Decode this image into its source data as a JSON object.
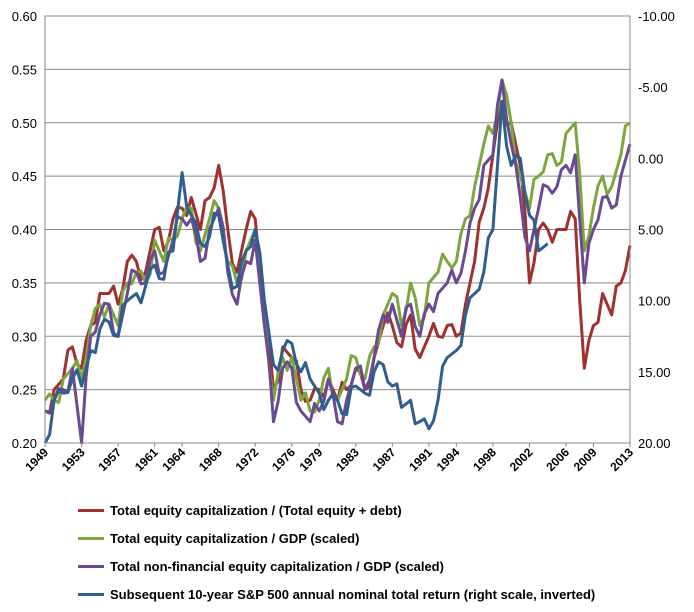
{
  "chart_data": {
    "type": "line",
    "title": "",
    "xlabel": "",
    "ylabel": "",
    "y_left": {
      "range": [
        0.2,
        0.6
      ],
      "ticks": [
        "0.20",
        "0.25",
        "0.30",
        "0.35",
        "0.40",
        "0.45",
        "0.50",
        "0.55",
        "0.60"
      ]
    },
    "y_right": {
      "range": [
        20.0,
        -10.0
      ],
      "inverted": true,
      "ticks": [
        "20.00",
        "15.00",
        "10.00",
        "5.00",
        "0.00",
        "-5.00",
        "-10.00"
      ]
    },
    "x_range": [
      1949,
      2013
    ],
    "x_ticks": [
      "1949",
      "1953",
      "1957",
      "1961",
      "1964",
      "1968",
      "1972",
      "1976",
      "1979",
      "1983",
      "1987",
      "1991",
      "1994",
      "1998",
      "2002",
      "2006",
      "2009",
      "2013"
    ],
    "grid": "horizontal",
    "legend_position": "bottom",
    "series": [
      {
        "name": "Total equity capitalization / (Total equity + debt)",
        "color": "#a0312e",
        "axis": "left",
        "x": [
          1949,
          1950,
          1951,
          1952,
          1953,
          1954,
          1955,
          1956,
          1957,
          1958,
          1959,
          1960,
          1961,
          1962,
          1963,
          1964,
          1965,
          1966,
          1967,
          1968,
          1969,
          1970,
          1971,
          1972,
          1973,
          1974,
          1975,
          1976,
          1977,
          1978,
          1979,
          1980,
          1981,
          1982,
          1983,
          1984,
          1985,
          1986,
          1987,
          1988,
          1989,
          1990,
          1991,
          1992,
          1993,
          1994,
          1995,
          1996,
          1997,
          1998,
          1999,
          2000,
          2001,
          2002,
          2003,
          2004,
          2005,
          2006,
          2007,
          2008,
          2009,
          2010,
          2011,
          2012,
          2013
        ],
        "y": [
          0.23,
          0.25,
          0.26,
          0.29,
          0.27,
          0.31,
          0.34,
          0.34,
          0.33,
          0.37,
          0.37,
          0.36,
          0.4,
          0.38,
          0.41,
          0.42,
          0.43,
          0.4,
          0.43,
          0.46,
          0.4,
          0.36,
          0.4,
          0.41,
          0.33,
          0.25,
          0.29,
          0.28,
          0.25,
          0.24,
          0.25,
          0.26,
          0.24,
          0.25,
          0.27,
          0.25,
          0.28,
          0.31,
          0.31,
          0.29,
          0.32,
          0.28,
          0.3,
          0.3,
          0.31,
          0.3,
          0.33,
          0.37,
          0.42,
          0.47,
          0.52,
          0.5,
          0.46,
          0.35,
          0.4,
          0.4,
          0.4,
          0.4,
          0.41,
          0.27,
          0.31,
          0.34,
          0.32,
          0.35,
          0.385
        ]
      },
      {
        "name": "Total equity capitalization / GDP (scaled)",
        "color": "#7ea63f",
        "axis": "left",
        "x": [
          1949,
          1950,
          1951,
          1952,
          1953,
          1954,
          1955,
          1956,
          1957,
          1958,
          1959,
          1960,
          1961,
          1962,
          1963,
          1964,
          1965,
          1966,
          1967,
          1968,
          1969,
          1970,
          1971,
          1972,
          1973,
          1974,
          1975,
          1976,
          1977,
          1978,
          1979,
          1980,
          1981,
          1982,
          1983,
          1984,
          1985,
          1986,
          1987,
          1988,
          1989,
          1990,
          1991,
          1992,
          1993,
          1994,
          1995,
          1996,
          1997,
          1998,
          1999,
          2000,
          2001,
          2002,
          2003,
          2004,
          2005,
          2006,
          2007,
          2008,
          2009,
          2010,
          2011,
          2012,
          2013
        ],
        "y": [
          0.24,
          0.24,
          0.26,
          0.27,
          0.26,
          0.31,
          0.33,
          0.33,
          0.31,
          0.35,
          0.36,
          0.35,
          0.39,
          0.37,
          0.39,
          0.41,
          0.42,
          0.38,
          0.41,
          0.42,
          0.37,
          0.35,
          0.38,
          0.4,
          0.32,
          0.24,
          0.28,
          0.28,
          0.24,
          0.23,
          0.24,
          0.27,
          0.24,
          0.26,
          0.28,
          0.26,
          0.29,
          0.32,
          0.34,
          0.31,
          0.35,
          0.31,
          0.35,
          0.36,
          0.37,
          0.37,
          0.41,
          0.44,
          0.48,
          0.49,
          0.54,
          0.5,
          0.45,
          0.42,
          0.45,
          0.47,
          0.46,
          0.49,
          0.5,
          0.38,
          0.42,
          0.45,
          0.44,
          0.47,
          0.5
        ]
      },
      {
        "name": "Total non-financial equity capitalization / GDP (scaled)",
        "color": "#6a4a92",
        "axis": "left",
        "x": [
          1949,
          1950,
          1951,
          1952,
          1953,
          1954,
          1955,
          1956,
          1957,
          1958,
          1959,
          1960,
          1961,
          1962,
          1963,
          1964,
          1965,
          1966,
          1967,
          1968,
          1969,
          1970,
          1971,
          1972,
          1973,
          1974,
          1975,
          1976,
          1977,
          1978,
          1979,
          1980,
          1981,
          1982,
          1983,
          1984,
          1985,
          1986,
          1987,
          1988,
          1989,
          1990,
          1991,
          1992,
          1993,
          1994,
          1995,
          1996,
          1997,
          1998,
          1999,
          2000,
          2001,
          2002,
          2003,
          2004,
          2005,
          2006,
          2007,
          2008,
          2009,
          2010,
          2011,
          2012,
          2013
        ],
        "y": [
          0.23,
          0.24,
          0.25,
          0.27,
          0.2,
          0.3,
          0.32,
          0.33,
          0.3,
          0.34,
          0.36,
          0.35,
          0.38,
          0.36,
          0.39,
          0.41,
          0.41,
          0.37,
          0.4,
          0.42,
          0.36,
          0.33,
          0.37,
          0.39,
          0.31,
          0.22,
          0.27,
          0.27,
          0.23,
          0.22,
          0.23,
          0.26,
          0.22,
          0.24,
          0.27,
          0.25,
          0.28,
          0.32,
          0.33,
          0.3,
          0.33,
          0.3,
          0.33,
          0.34,
          0.35,
          0.35,
          0.38,
          0.42,
          0.46,
          0.47,
          0.54,
          0.48,
          0.43,
          0.38,
          0.42,
          0.44,
          0.44,
          0.46,
          0.47,
          0.35,
          0.4,
          0.43,
          0.42,
          0.45,
          0.48
        ]
      },
      {
        "name": "Subsequent 10-year S&P 500 annual nominal total return (right scale, inverted)",
        "color": "#2f5f8e",
        "axis": "right",
        "x": [
          1949,
          1950,
          1951,
          1952,
          1953,
          1954,
          1955,
          1956,
          1957,
          1958,
          1959,
          1960,
          1961,
          1962,
          1963,
          1964,
          1965,
          1966,
          1967,
          1968,
          1969,
          1970,
          1971,
          1972,
          1973,
          1974,
          1975,
          1976,
          1977,
          1978,
          1979,
          1980,
          1981,
          1982,
          1983,
          1984,
          1985,
          1986,
          1987,
          1988,
          1989,
          1990,
          1991,
          1992,
          1993,
          1994,
          1995,
          1996,
          1997,
          1998,
          1999,
          2000,
          2001,
          2002,
          2003,
          2004
        ],
        "y": [
          20.0,
          17.0,
          16.5,
          15.5,
          16.0,
          13.5,
          12.0,
          11.5,
          12.5,
          10.0,
          9.5,
          9.0,
          7.5,
          8.5,
          6.5,
          1.0,
          4.0,
          6.0,
          5.5,
          4.0,
          7.5,
          9.0,
          6.5,
          5.0,
          10.0,
          14.5,
          13.5,
          13.0,
          15.0,
          15.5,
          16.5,
          17.0,
          17.0,
          18.0,
          16.0,
          16.5,
          15.0,
          14.5,
          16.0,
          17.5,
          17.0,
          18.5,
          19.0,
          17.0,
          14.0,
          13.5,
          11.0,
          9.5,
          8.0,
          5.0,
          -4.0,
          0.5,
          0.0,
          4.0,
          6.5,
          6.0
        ]
      }
    ]
  }
}
